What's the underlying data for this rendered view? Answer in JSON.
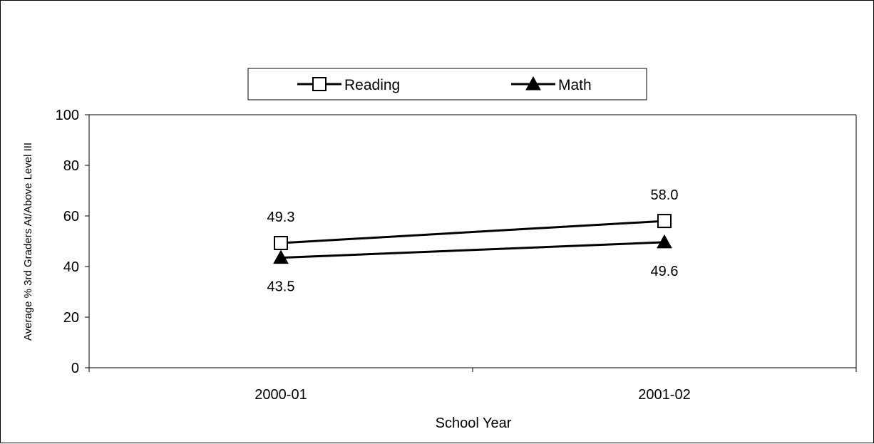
{
  "chart_data": {
    "type": "line",
    "title": "",
    "xlabel": "School Year",
    "ylabel": "Average % 3rd Graders At/Above Level III",
    "ylim": [
      0,
      100
    ],
    "yticks": [
      "0",
      "20",
      "40",
      "60",
      "80",
      "100"
    ],
    "categories": [
      "2000-01",
      "2001-02"
    ],
    "legend_position": "top",
    "grid": false,
    "series": [
      {
        "name": "Reading",
        "marker": "open-square",
        "color": "#000000",
        "values": [
          49.3,
          58.0
        ],
        "labels": [
          "49.3",
          "58.0"
        ],
        "label_position": "above"
      },
      {
        "name": "Math",
        "marker": "filled-triangle",
        "color": "#000000",
        "values": [
          43.5,
          49.6
        ],
        "labels": [
          "43.5",
          "49.6"
        ],
        "label_position": "below"
      }
    ]
  }
}
